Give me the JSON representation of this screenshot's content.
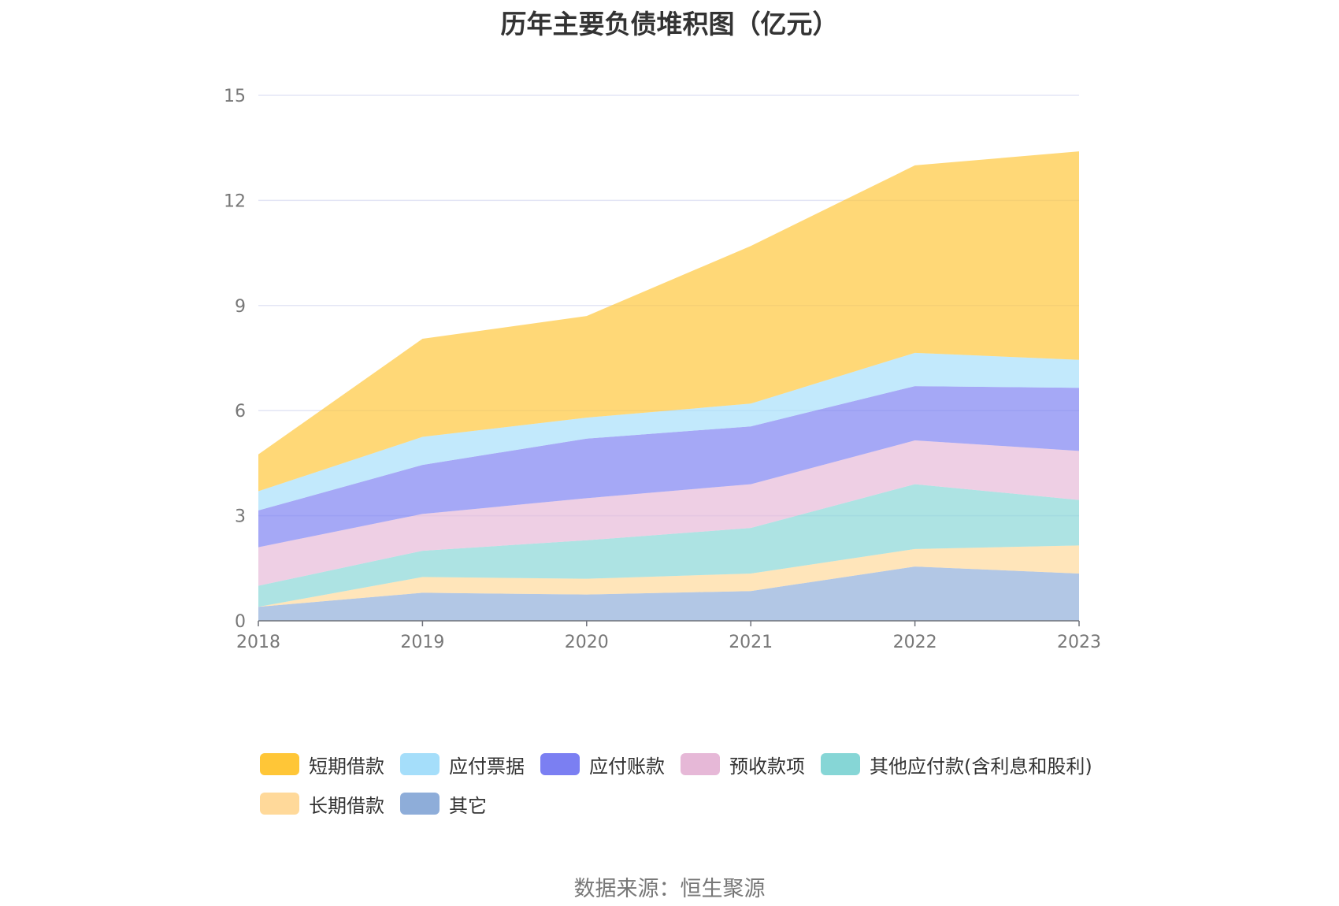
{
  "title": "历年主要负债堆积图（亿元）",
  "source": "数据来源：恒生聚源",
  "chart_data": {
    "type": "area",
    "stacked": true,
    "categories": [
      "2018",
      "2019",
      "2020",
      "2021",
      "2022",
      "2023"
    ],
    "ylim": [
      0,
      15
    ],
    "yticks": [
      0,
      3,
      6,
      9,
      12,
      15
    ],
    "grid": true,
    "legend_position": "bottom",
    "series": [
      {
        "name": "其它",
        "color": "#8eadd9",
        "values": [
          0.4,
          0.8,
          0.75,
          0.85,
          1.55,
          1.35
        ]
      },
      {
        "name": "长期借款",
        "color": "#ffd99a",
        "values": [
          0.0,
          0.45,
          0.45,
          0.5,
          0.5,
          0.8
        ]
      },
      {
        "name": "其他应付款(含利息和股利)",
        "color": "#86d6d6",
        "values": [
          0.6,
          0.75,
          1.1,
          1.3,
          1.85,
          1.3
        ]
      },
      {
        "name": "预收款项",
        "color": "#e6b8d7",
        "values": [
          1.1,
          1.05,
          1.2,
          1.25,
          1.25,
          1.4
        ]
      },
      {
        "name": "应付账款",
        "color": "#7b7ff2",
        "values": [
          1.05,
          1.4,
          1.7,
          1.65,
          1.55,
          1.8
        ]
      },
      {
        "name": "应付票据",
        "color": "#a5defa",
        "values": [
          0.55,
          0.8,
          0.6,
          0.65,
          0.95,
          0.8
        ]
      },
      {
        "name": "短期借款",
        "color": "#ffc637",
        "values": [
          1.05,
          2.8,
          2.9,
          4.5,
          5.35,
          5.95
        ]
      }
    ],
    "legend_order": [
      "短期借款",
      "应付票据",
      "应付账款",
      "预收款项",
      "其他应付款(含利息和股利)",
      "长期借款",
      "其它"
    ]
  }
}
